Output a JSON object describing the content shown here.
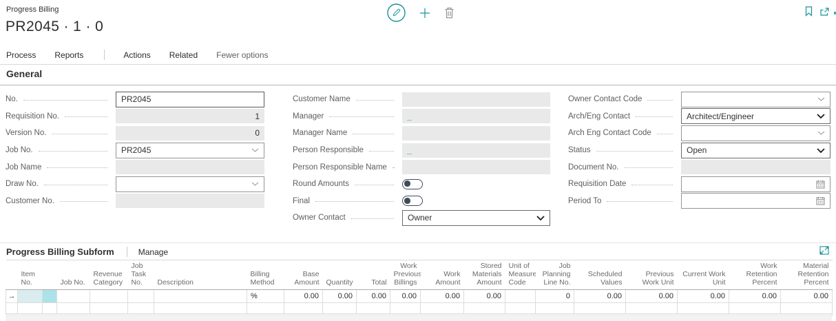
{
  "colors": {
    "accent": "#17929b",
    "disabled_field_bg": "#e9e9e9",
    "selected_cell": "#d9edf0",
    "selected_cell_strong": "#abe3e8"
  },
  "header": {
    "app_caption": "Progress Billing",
    "page_title": "PR2045 · 1 · 0",
    "toolbar_icons": [
      "edit-pencil",
      "add-plus",
      "delete-trash"
    ],
    "window_icons": [
      "bookmark",
      "open-in-new-window"
    ]
  },
  "menu": {
    "items": [
      "Process",
      "Reports",
      "Actions",
      "Related",
      "Fewer options"
    ]
  },
  "general": {
    "title": "General",
    "columns": [
      {
        "fields": [
          {
            "label": "No.",
            "type": "text",
            "value": "PR2045",
            "state": "enabled",
            "focused": true
          },
          {
            "label": "Requisition No.",
            "type": "text",
            "value": "1",
            "state": "disabled",
            "align": "right"
          },
          {
            "label": "Version No.",
            "type": "text",
            "value": "0",
            "state": "disabled",
            "align": "right"
          },
          {
            "label": "Job No.",
            "type": "lookup",
            "value": "PR2045",
            "state": "enabled"
          },
          {
            "label": "Job Name",
            "type": "text",
            "value": "",
            "state": "disabled"
          },
          {
            "label": "Draw No.",
            "type": "lookup",
            "value": "",
            "state": "enabled"
          },
          {
            "label": "Customer No.",
            "type": "text",
            "value": "",
            "state": "disabled"
          }
        ]
      },
      {
        "fields": [
          {
            "label": "Customer Name",
            "type": "text",
            "value": "",
            "state": "disabled"
          },
          {
            "label": "Manager",
            "type": "link",
            "value": "_",
            "state": "disabled"
          },
          {
            "label": "Manager Name",
            "type": "text",
            "value": "",
            "state": "disabled"
          },
          {
            "label": "Person Responsible",
            "type": "link",
            "value": "_",
            "state": "disabled"
          },
          {
            "label": "Person Responsible Name",
            "type": "text",
            "value": "",
            "state": "disabled"
          },
          {
            "label": "Round Amounts",
            "type": "toggle",
            "value": "off"
          },
          {
            "label": "Final",
            "type": "toggle",
            "value": "off"
          },
          {
            "label": "Owner Contact",
            "type": "select",
            "value": "Owner",
            "state": "enabled"
          }
        ]
      },
      {
        "fields": [
          {
            "label": "Owner Contact Code",
            "type": "lookup",
            "value": "",
            "state": "enabled"
          },
          {
            "label": "Arch/Eng Contact",
            "type": "select",
            "value": "Architect/Engineer",
            "state": "enabled"
          },
          {
            "label": "Arch Eng Contact Code",
            "type": "lookup",
            "value": "",
            "state": "enabled"
          },
          {
            "label": "Status",
            "type": "select",
            "value": "Open",
            "state": "enabled"
          },
          {
            "label": "Document No.",
            "type": "text",
            "value": "",
            "state": "disabled"
          },
          {
            "label": "Requisition Date",
            "type": "date",
            "value": "",
            "state": "enabled"
          },
          {
            "label": "Period To",
            "type": "date",
            "value": "",
            "state": "enabled"
          }
        ]
      }
    ]
  },
  "subform": {
    "title": "Progress Billing Subform",
    "manage_label": "Manage",
    "focus_icon": "focus-mode",
    "columns": [
      {
        "label": "",
        "align": "c",
        "key": "row-selector"
      },
      {
        "label": "Item No.",
        "align": "l",
        "key": "item-no"
      },
      {
        "label": "",
        "align": "l",
        "key": "item-no-assist"
      },
      {
        "label": "Job No.",
        "align": "l",
        "key": "job-no"
      },
      {
        "label": "Revenue Category",
        "align": "l",
        "key": "revenue-category"
      },
      {
        "label": "Job Task No.",
        "align": "l",
        "key": "job-task-no"
      },
      {
        "label": "Description",
        "align": "l",
        "key": "description"
      },
      {
        "label": "Billing Method",
        "align": "l",
        "key": "billing-method"
      },
      {
        "label": "Base Amount",
        "align": "r",
        "key": "base-amount"
      },
      {
        "label": "Quantity",
        "align": "r",
        "key": "quantity"
      },
      {
        "label": "Total",
        "align": "r",
        "key": "total"
      },
      {
        "label": "Work Previous Billings",
        "align": "r",
        "key": "work-previous-billings"
      },
      {
        "label": "Work Amount",
        "align": "r",
        "key": "work-amount"
      },
      {
        "label": "Stored Materials Amount",
        "align": "r",
        "key": "stored-materials-amount"
      },
      {
        "label": "Unit of Measure Code",
        "align": "l",
        "key": "unit-of-measure-code"
      },
      {
        "label": "Job Planning Line No.",
        "align": "r",
        "key": "job-planning-line-no"
      },
      {
        "label": "Scheduled Values",
        "align": "r",
        "key": "scheduled-values"
      },
      {
        "label": "Previous Work Unit",
        "align": "r",
        "key": "previous-work-unit"
      },
      {
        "label": "Current Work Unit",
        "align": "r",
        "key": "current-work-unit"
      },
      {
        "label": "Work Retention Percent",
        "align": "r",
        "key": "work-retention-percent"
      },
      {
        "label": "Material Retention Percent",
        "align": "r",
        "key": "material-retention-percent"
      }
    ],
    "rows": [
      [
        "→",
        "",
        "",
        "",
        "",
        "",
        "",
        "%",
        "0.00",
        "0.00",
        "0.00",
        "0.00",
        "0.00",
        "0.00",
        "",
        "0",
        "0.00",
        "0.00",
        "0.00",
        "0.00",
        "0.00"
      ],
      [
        "",
        "",
        "",
        "",
        "",
        "",
        "",
        "",
        "",
        "",
        "",
        "",
        "",
        "",
        "",
        "",
        "",
        "",
        "",
        "",
        ""
      ]
    ]
  }
}
